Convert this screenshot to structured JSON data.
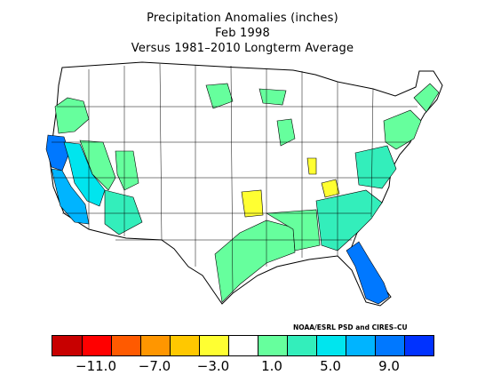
{
  "title": {
    "line1": "Precipitation Anomalies (inches)",
    "line2": "Feb 1998",
    "line3": "Versus 1981–2010 Longterm Average"
  },
  "credit": "NOAA/ESRL PSD and CIRES–CU",
  "legend": {
    "colors": [
      "#c80000",
      "#ff0000",
      "#ff5a00",
      "#ff9600",
      "#ffc800",
      "#ffff32",
      "#ffffff",
      "#66ff9d",
      "#33eebb",
      "#00e5ee",
      "#00b4ff",
      "#0078ff",
      "#0032ff"
    ],
    "tick_labels": [
      "−11.0",
      "−7.0",
      "−3.0",
      "1.0",
      "5.0",
      "9.0"
    ]
  },
  "map": {
    "region": "Contiguous United States",
    "units": "inches",
    "anomaly_areas": [
      {
        "area": "Pacific Northwest coast",
        "class": "1 to 3"
      },
      {
        "area": "Northern California coast",
        "class": "7 to 9"
      },
      {
        "area": "Central/Southern California",
        "class": "5 to 7"
      },
      {
        "area": "Nevada/Arizona",
        "class": "1 to 3"
      },
      {
        "area": "Texas / Gulf Coast",
        "class": "1 to 3"
      },
      {
        "area": "Southeast / Carolinas",
        "class": "3 to 5"
      },
      {
        "area": "Florida",
        "class": "5 to 9"
      },
      {
        "area": "Mid-Atlantic / New England coast",
        "class": "1 to 5"
      },
      {
        "area": "Kansas/Oklahoma",
        "class": "-1 to -3"
      },
      {
        "area": "Ohio Valley",
        "class": "-1 to -3"
      }
    ]
  }
}
